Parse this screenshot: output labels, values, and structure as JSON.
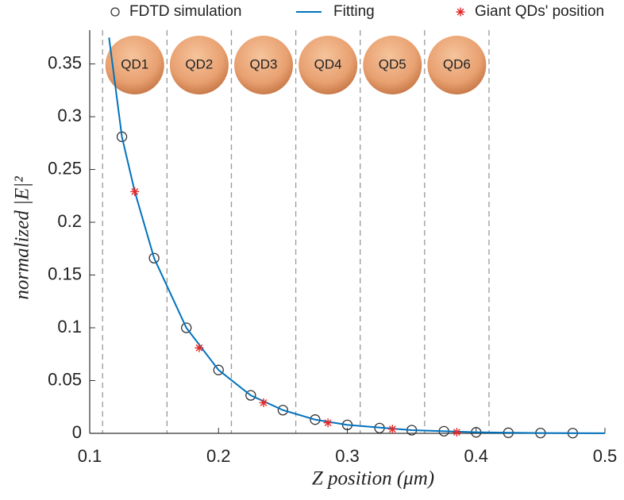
{
  "chart_data": {
    "type": "line",
    "xlabel": "Z position (μm)",
    "ylabel": "normalized |E|²",
    "xlim": [
      0.1,
      0.5
    ],
    "ylim": [
      0,
      0.382
    ],
    "xticks": [
      0.1,
      0.2,
      0.3,
      0.4,
      0.5
    ],
    "yticks": [
      0,
      0.05,
      0.1,
      0.15,
      0.2,
      0.25,
      0.3,
      0.35
    ],
    "grid": false,
    "legend": "top",
    "boundaries": [
      0.11,
      0.16,
      0.21,
      0.26,
      0.31,
      0.36,
      0.41
    ],
    "regions": [
      "QD1",
      "QD2",
      "QD3",
      "QD4",
      "QD5",
      "QD6"
    ],
    "series": [
      {
        "name": "FDTD simulation",
        "color": "#333333",
        "marker": "circle",
        "line": false,
        "x": [
          0.125,
          0.15,
          0.175,
          0.2,
          0.225,
          0.25,
          0.275,
          0.3,
          0.325,
          0.35,
          0.375,
          0.4,
          0.425,
          0.45,
          0.475
        ],
        "values": [
          0.281,
          0.166,
          0.1,
          0.06,
          0.036,
          0.022,
          0.013,
          0.008,
          0.005,
          0.003,
          0.002,
          0.001,
          0.0005,
          0.0003,
          0.0002
        ]
      },
      {
        "name": "Fitting",
        "color": "#0072bd",
        "marker": "none",
        "line": true,
        "x": [
          0.115,
          0.125,
          0.135,
          0.15,
          0.175,
          0.2,
          0.225,
          0.25,
          0.275,
          0.3,
          0.35,
          0.4,
          0.45,
          0.5
        ],
        "values": [
          0.375,
          0.281,
          0.229,
          0.166,
          0.1,
          0.06,
          0.036,
          0.022,
          0.013,
          0.008,
          0.003,
          0.001,
          0.0003,
          0.0001
        ]
      },
      {
        "name": "Giant QDs' position",
        "color": "#e02a2a",
        "marker": "star",
        "line": false,
        "x": [
          0.135,
          0.185,
          0.235,
          0.285,
          0.335,
          0.385
        ],
        "values": [
          0.229,
          0.081,
          0.029,
          0.01,
          0.004,
          0.001
        ]
      }
    ]
  }
}
